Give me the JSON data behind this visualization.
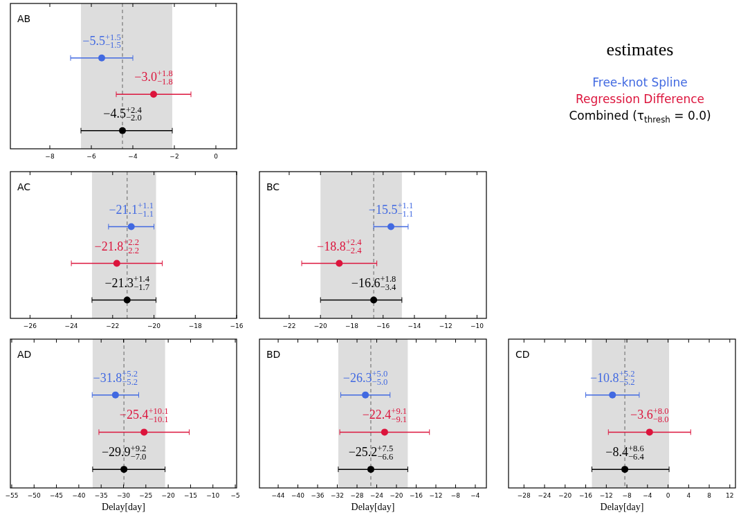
{
  "chart_data": [
    {
      "type": "scatter",
      "title": "AB",
      "orientation": "horizontal",
      "categories": [
        null,
        null,
        null,
        null
      ],
      "xlim": [
        -9.9,
        1.0
      ],
      "xticks": [
        -8,
        -6,
        -4,
        -2,
        0
      ],
      "tick_labels": "x",
      "marker": "circle",
      "legend": "right",
      "legend_title": "estimates",
      "series": [
        {
          "name": "Free-knot Spline",
          "color": "#4169e1",
          "values": [
            null,
            -5.5,
            null,
            null
          ],
          "errors": [
            null,
            1.5,
            null,
            null
          ],
          "value_labels": [
            null,
            "−5.5$^{+1.5}$$_{−1.5}$",
            null,
            null
          ]
        },
        {
          "name": "Regression Difference",
          "color": "#dc143c",
          "values": [
            null,
            null,
            -3.0,
            null
          ],
          "errors": [
            null,
            null,
            1.8,
            null
          ],
          "value_labels": [
            null,
            null,
            "−3.0$^{+1.8}$$_{−1.8}$",
            null
          ]
        },
        {
          "name": "Combined (τ$_{thresh}$ = 0.0)",
          "color": "#000000",
          "values": [
            null,
            null,
            null,
            -4.5
          ],
          "errors": [
            null,
            null,
            null,
            [
              -6.5,
              -2.1
            ]
          ],
          "value_labels": [
            null,
            null,
            null,
            "−4.5$^{+2.4}$$_{−2.0}$"
          ]
        }
      ],
      "bands": [
        {
          "axis": "x",
          "from": -6.5,
          "to": -2.1,
          "color": "#dddddd"
        }
      ],
      "ref_lines": [
        {
          "axis": "x",
          "value": -4.5,
          "color": "#808080",
          "line_style": "dashed"
        }
      ]
    },
    {
      "type": "scatter",
      "title": "AC",
      "orientation": "horizontal",
      "categories": [
        null,
        null,
        null,
        null
      ],
      "xlim": [
        -26.95,
        -16
      ],
      "xticks": [
        -26,
        -24,
        -22,
        -20,
        -18,
        -16
      ],
      "tick_labels": "x",
      "marker": "circle",
      "series": [
        {
          "color": "#4169e1",
          "values": [
            null,
            -21.1,
            null,
            null
          ],
          "errors": [
            null,
            1.1,
            null,
            null
          ],
          "value_labels": [
            null,
            "−21.1$^{+1.1}$$_{−1.1}$",
            null,
            null
          ]
        },
        {
          "color": "#dc143c",
          "values": [
            null,
            null,
            -21.8,
            null
          ],
          "errors": [
            null,
            null,
            2.2,
            null
          ],
          "value_labels": [
            null,
            null,
            "−21.8$^{+2.2}$$_{−2.2}$",
            null
          ]
        },
        {
          "color": "#000000",
          "values": [
            null,
            null,
            null,
            -21.3
          ],
          "errors": [
            null,
            null,
            null,
            [
              -23.0,
              -19.9
            ]
          ],
          "value_labels": [
            null,
            null,
            null,
            "−21.3$^{+1.4}$$_{−1.7}$"
          ]
        }
      ],
      "bands": [
        {
          "axis": "x",
          "from": -23.0,
          "to": -19.9,
          "color": "#dddddd"
        }
      ],
      "ref_lines": [
        {
          "axis": "x",
          "value": -21.3,
          "color": "#808080",
          "line_style": "dashed"
        }
      ]
    },
    {
      "type": "scatter",
      "title": "BC",
      "orientation": "horizontal",
      "categories": [
        null,
        null,
        null,
        null
      ],
      "xlim": [
        -23.9,
        -9.4
      ],
      "xticks": [
        -22,
        -20,
        -18,
        -16,
        -14,
        -12,
        -10
      ],
      "tick_labels": "x",
      "marker": "circle",
      "series": [
        {
          "color": "#4169e1",
          "values": [
            null,
            -15.5,
            null,
            null
          ],
          "errors": [
            null,
            1.1,
            null,
            null
          ],
          "value_labels": [
            null,
            "−15.5$^{+1.1}$$_{−1.1}$",
            null,
            null
          ]
        },
        {
          "color": "#dc143c",
          "values": [
            null,
            null,
            -18.8,
            null
          ],
          "errors": [
            null,
            null,
            2.4,
            null
          ],
          "value_labels": [
            null,
            null,
            "−18.8$^{+2.4}$$_{−2.4}$",
            null
          ]
        },
        {
          "color": "#000000",
          "values": [
            null,
            null,
            null,
            -16.6
          ],
          "errors": [
            null,
            null,
            null,
            [
              -20.0,
              -14.8
            ]
          ],
          "value_labels": [
            null,
            null,
            null,
            "−16.6$^{+1.8}$$_{−3.4}$"
          ]
        }
      ],
      "bands": [
        {
          "axis": "x",
          "from": -20.0,
          "to": -14.8,
          "color": "#dddddd"
        }
      ],
      "ref_lines": [
        {
          "axis": "x",
          "value": -16.6,
          "color": "#808080",
          "line_style": "dashed"
        }
      ]
    },
    {
      "type": "scatter",
      "title": "AD",
      "xlabel": "Delay[day]",
      "orientation": "horizontal",
      "categories": [
        null,
        null,
        null,
        null
      ],
      "xlim": [
        -55.3,
        -4.7
      ],
      "xticks": [
        -55,
        -50,
        -45,
        -40,
        -35,
        -30,
        -25,
        -20,
        -15,
        -10,
        -5
      ],
      "tick_labels": "x",
      "marker": "circle",
      "series": [
        {
          "color": "#4169e1",
          "values": [
            null,
            -31.8,
            null,
            null
          ],
          "errors": [
            null,
            5.2,
            null,
            null
          ],
          "value_labels": [
            null,
            "−31.8$^{+5.2}$$_{−5.2}$",
            null,
            null
          ]
        },
        {
          "color": "#dc143c",
          "values": [
            null,
            null,
            -25.4,
            null
          ],
          "errors": [
            null,
            null,
            10.1,
            null
          ],
          "value_labels": [
            null,
            null,
            "−25.4$^{+10.1}$$_{−10.1}$",
            null
          ]
        },
        {
          "color": "#000000",
          "values": [
            null,
            null,
            null,
            -29.9
          ],
          "errors": [
            null,
            null,
            null,
            [
              -36.9,
              -20.7
            ]
          ],
          "value_labels": [
            null,
            null,
            null,
            "−29.9$^{+9.2}$$_{−7.0}$"
          ]
        }
      ],
      "bands": [
        {
          "axis": "x",
          "from": -36.9,
          "to": -20.7,
          "color": "#dddddd"
        }
      ],
      "ref_lines": [
        {
          "axis": "x",
          "value": -29.9,
          "color": "#808080",
          "line_style": "dashed"
        }
      ]
    },
    {
      "type": "scatter",
      "title": "BD",
      "xlabel": "Delay[day]",
      "orientation": "horizontal",
      "categories": [
        null,
        null,
        null,
        null
      ],
      "xlim": [
        -47.8,
        -1.75
      ],
      "xticks": [
        -44,
        -40,
        -36,
        -32,
        -28,
        -24,
        -20,
        -16,
        -12,
        -8,
        -4
      ],
      "tick_labels": "x",
      "marker": "circle",
      "series": [
        {
          "color": "#4169e1",
          "values": [
            null,
            -26.3,
            null,
            null
          ],
          "errors": [
            null,
            5.0,
            null,
            null
          ],
          "value_labels": [
            null,
            "−26.3$^{+5.0}$$_{−5.0}$",
            null,
            null
          ]
        },
        {
          "color": "#dc143c",
          "values": [
            null,
            null,
            -22.4,
            null
          ],
          "errors": [
            null,
            null,
            9.1,
            null
          ],
          "value_labels": [
            null,
            null,
            "−22.4$^{+9.1}$$_{−9.1}$",
            null
          ]
        },
        {
          "color": "#000000",
          "values": [
            null,
            null,
            null,
            -25.2
          ],
          "errors": [
            null,
            null,
            null,
            [
              -31.8,
              -17.7
            ]
          ],
          "value_labels": [
            null,
            null,
            null,
            "−25.2$^{+7.5}$$_{−6.6}$"
          ]
        }
      ],
      "bands": [
        {
          "axis": "x",
          "from": -31.8,
          "to": -17.7,
          "color": "#dddddd"
        }
      ],
      "ref_lines": [
        {
          "axis": "x",
          "value": -25.2,
          "color": "#808080",
          "line_style": "dashed"
        }
      ]
    },
    {
      "type": "scatter",
      "title": "CD",
      "xlabel": "Delay[day]",
      "orientation": "horizontal",
      "categories": [
        null,
        null,
        null,
        null
      ],
      "xlim": [
        -31.0,
        13.1
      ],
      "xticks": [
        -28,
        -24,
        -20,
        -16,
        -12,
        -8,
        -4,
        0,
        4,
        8,
        12
      ],
      "tick_labels": "x",
      "marker": "circle",
      "series": [
        {
          "color": "#4169e1",
          "values": [
            null,
            -10.8,
            null,
            null
          ],
          "errors": [
            null,
            5.2,
            null,
            null
          ],
          "value_labels": [
            null,
            "−10.8$^{+5.2}$$_{−5.2}$",
            null,
            null
          ]
        },
        {
          "color": "#dc143c",
          "values": [
            null,
            null,
            -3.6,
            null
          ],
          "errors": [
            null,
            null,
            8.0,
            null
          ],
          "value_labels": [
            null,
            null,
            "−3.6$^{+8.0}$$_{−8.0}$",
            null
          ]
        },
        {
          "color": "#000000",
          "values": [
            null,
            null,
            null,
            -8.4
          ],
          "errors": [
            null,
            null,
            null,
            [
              -14.8,
              0.2
            ]
          ],
          "value_labels": [
            null,
            null,
            null,
            "−8.4$^{+8.6}$$_{−6.4}$"
          ]
        }
      ],
      "bands": [
        {
          "axis": "x",
          "from": -14.8,
          "to": 0.2,
          "color": "#dddddd"
        }
      ],
      "ref_lines": [
        {
          "axis": "x",
          "value": -8.4,
          "color": "#808080",
          "line_style": "dashed"
        }
      ]
    }
  ]
}
